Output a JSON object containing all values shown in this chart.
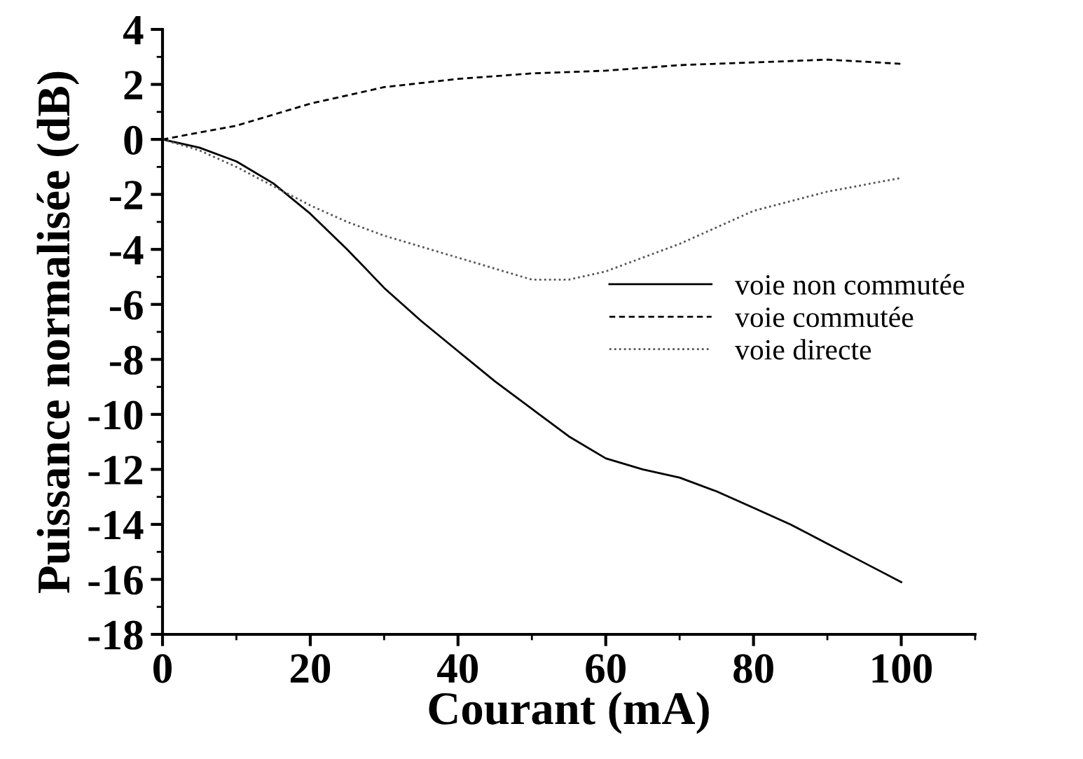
{
  "chart_data": {
    "type": "line",
    "xlabel": "Courant (mA)",
    "ylabel": "Puissance normalisée (dB)",
    "xlim": [
      0,
      110
    ],
    "xticks": [
      0,
      20,
      40,
      60,
      80,
      100
    ],
    "ylim": [
      -18,
      4
    ],
    "yticks": [
      -18,
      -16,
      -14,
      -12,
      -10,
      -8,
      -6,
      -4,
      -2,
      0,
      2,
      4
    ],
    "grid": false,
    "legend": "right",
    "marker": "none",
    "series": [
      {
        "name": "voie non commutée",
        "color": "#000000",
        "line_style": "solid",
        "x": [
          0,
          5,
          10,
          15,
          20,
          25,
          30,
          35,
          40,
          45,
          50,
          55,
          60,
          65,
          70,
          75,
          80,
          85,
          90,
          95,
          100
        ],
        "values": [
          0,
          -0.3,
          -0.8,
          -1.6,
          -2.7,
          -4.0,
          -5.4,
          -6.6,
          -7.7,
          -8.8,
          -9.8,
          -10.8,
          -11.6,
          -12.0,
          -12.3,
          -12.8,
          -13.4,
          -14.0,
          -14.7,
          -15.4,
          -16.1
        ]
      },
      {
        "name": "voie commutée",
        "color": "#000000",
        "line_style": "dashed",
        "x": [
          0,
          10,
          20,
          30,
          40,
          50,
          60,
          70,
          80,
          90,
          100
        ],
        "values": [
          0,
          0.5,
          1.3,
          1.9,
          2.2,
          2.4,
          2.5,
          2.7,
          2.8,
          2.9,
          2.75
        ]
      },
      {
        "name": "voie directe",
        "color": "#555555",
        "line_style": "dotted",
        "x": [
          0,
          5,
          10,
          15,
          20,
          25,
          30,
          35,
          40,
          45,
          50,
          55,
          60,
          65,
          70,
          75,
          80,
          90,
          100
        ],
        "values": [
          0,
          -0.4,
          -1.0,
          -1.7,
          -2.4,
          -3.0,
          -3.5,
          -3.9,
          -4.3,
          -4.7,
          -5.1,
          -5.1,
          -4.8,
          -4.3,
          -3.8,
          -3.2,
          -2.6,
          -1.9,
          -1.4
        ]
      }
    ]
  }
}
